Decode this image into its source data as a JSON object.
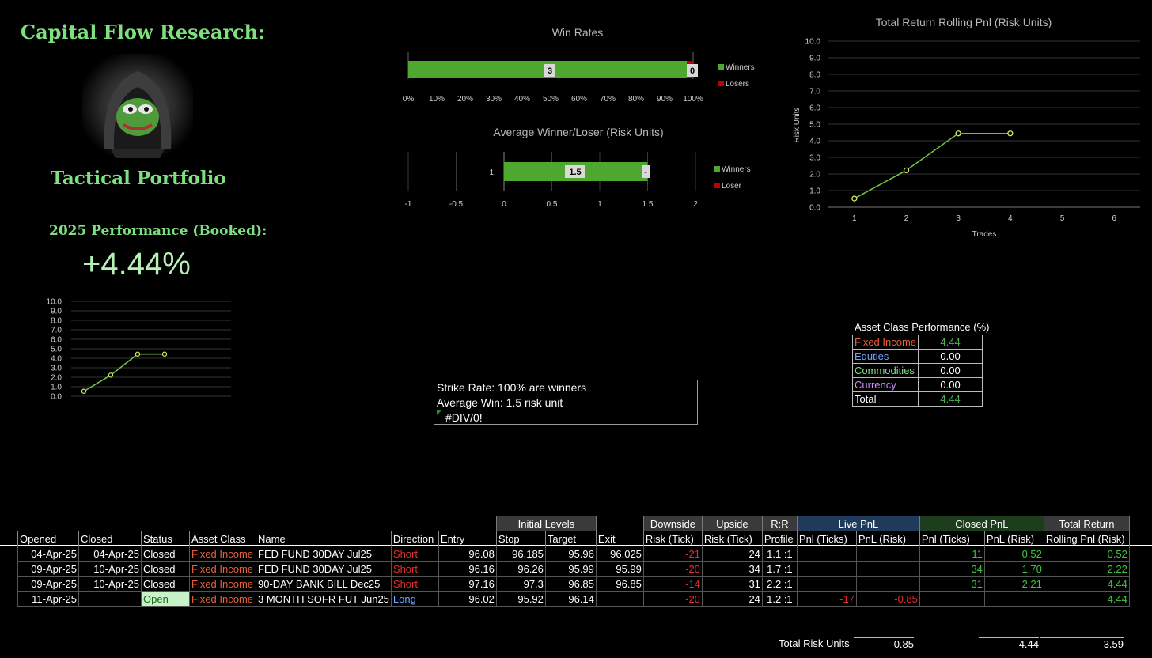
{
  "brand": {
    "title": "Capital Flow Research:",
    "subtitle": "Tactical Portfolio",
    "perf_label": "2025 Performance (Booked):",
    "perf_value": "+4.44%",
    "avatar_icon": "frog-hoodie-avatar"
  },
  "colors": {
    "green_text": "#7fe07f",
    "bar_green": "#4ea72e",
    "red": "#e03030",
    "orange_red": "#e8603c",
    "blue": "#6ea6ff",
    "purple": "#d08bff"
  },
  "win_rates_chart": {
    "type": "bar",
    "title": "Win Rates",
    "orientation": "horizontal-stacked-100",
    "series": [
      {
        "name": "Winners",
        "values": [
          3
        ],
        "color": "#4ea72e"
      },
      {
        "name": "Losers",
        "values": [
          0
        ],
        "color": "#c00000"
      }
    ],
    "data_labels": [
      "3",
      "0"
    ],
    "x_ticks": [
      "0%",
      "10%",
      "20%",
      "30%",
      "40%",
      "50%",
      "60%",
      "70%",
      "80%",
      "90%",
      "100%"
    ],
    "legend": [
      "Winners",
      "Losers"
    ],
    "legend_position": "right"
  },
  "avg_chart": {
    "type": "bar",
    "title": "Average Winner/Loser (Risk Units)",
    "orientation": "horizontal",
    "categories": [
      "1"
    ],
    "series": [
      {
        "name": "Winners",
        "values": [
          1.5
        ],
        "color": "#4ea72e"
      },
      {
        "name": "Loser",
        "values": [
          0
        ],
        "color": "#c00000"
      }
    ],
    "data_labels": [
      "1.5",
      "-"
    ],
    "x_ticks": [
      "-1",
      "-0.5",
      "0",
      "0.5",
      "1",
      "1.5",
      "2"
    ],
    "xlim": [
      -1,
      2
    ],
    "legend": [
      "Winners",
      "Loser"
    ],
    "legend_position": "right"
  },
  "chart_data": [
    {
      "type": "line",
      "title": "Total Return Rolling Pnl (Risk Units)",
      "xlabel": "Trades",
      "ylabel": "Risk Units",
      "x": [
        1,
        2,
        3,
        4
      ],
      "series": [
        {
          "values": [
            0.52,
            2.22,
            4.44,
            4.44
          ]
        }
      ],
      "x_ticks": [
        "1",
        "2",
        "3",
        "4",
        "5",
        "6"
      ],
      "y_ticks": [
        "0.0",
        "1.0",
        "2.0",
        "3.0",
        "4.0",
        "5.0",
        "6.0",
        "7.0",
        "8.0",
        "9.0",
        "10.0"
      ],
      "xlim": [
        0.5,
        6.5
      ],
      "ylim": [
        0,
        10
      ],
      "grid": true
    },
    {
      "type": "line",
      "title": "",
      "x": [
        1,
        2,
        3,
        4
      ],
      "series": [
        {
          "values": [
            0.52,
            2.22,
            4.44,
            4.44
          ]
        }
      ],
      "y_ticks": [
        "0.0",
        "1.0",
        "2.0",
        "3.0",
        "4.0",
        "5.0",
        "6.0",
        "7.0",
        "8.0",
        "9.0",
        "10.0"
      ],
      "ylim": [
        0,
        10
      ],
      "grid": true
    }
  ],
  "notes": {
    "line1": "Strike Rate: 100% are winners",
    "line2": "Average Win: 1.5 risk unit",
    "line3": "#DIV/0!"
  },
  "asset_perf": {
    "title": "Asset Class Performance (%)",
    "rows": [
      {
        "name": "Fixed Income",
        "value": "4.44",
        "name_color": "#e8603c",
        "value_color": "#4caf50"
      },
      {
        "name": "Equties",
        "value": "0.00",
        "name_color": "#6ea6ff",
        "value_color": "#ffffff"
      },
      {
        "name": "Commodities",
        "value": "0.00",
        "name_color": "#7fe07f",
        "value_color": "#ffffff"
      },
      {
        "name": "Currency",
        "value": "0.00",
        "name_color": "#d08bff",
        "value_color": "#ffffff"
      },
      {
        "name": "Total",
        "value": "4.44",
        "name_color": "#ffffff",
        "value_color": "#4caf50"
      }
    ]
  },
  "trades": {
    "groups": {
      "initial": "Initial Levels",
      "downside": "Downside",
      "upside": "Upside",
      "rr": "R:R",
      "live": "Live PnL",
      "closed": "Closed PnL",
      "total": "Total Return"
    },
    "headers": [
      "Opened",
      "Closed",
      "Status",
      "Asset Class",
      "Name",
      "Direction",
      "Entry",
      "Stop",
      "Target",
      "Exit",
      "Risk (Tick)",
      "Risk (Tick)",
      "Profile",
      "Pnl (Ticks)",
      "PnL (Risk)",
      "Pnl (Ticks)",
      "PnL (Risk)",
      "Rolling Pnl (Risk)"
    ],
    "rows": [
      {
        "opened": "04-Apr-25",
        "closed": "04-Apr-25",
        "status": "Closed",
        "asset": "Fixed Income",
        "name": "FED FUND 30DAY    Jul25",
        "direction": "Short",
        "entry": "96.08",
        "stop": "96.185",
        "target": "95.96",
        "exit": "96.025",
        "down": "-21",
        "up": "24",
        "rr": "1.1 :1",
        "live_ticks": "",
        "live_risk": "",
        "closed_ticks": "11",
        "closed_risk": "0.52",
        "rolling": "0.52"
      },
      {
        "opened": "09-Apr-25",
        "closed": "10-Apr-25",
        "status": "Closed",
        "asset": "Fixed Income",
        "name": "FED FUND 30DAY    Jul25",
        "direction": "Short",
        "entry": "96.16",
        "stop": "96.26",
        "target": "95.99",
        "exit": "95.99",
        "down": "-20",
        "up": "34",
        "rr": "1.7 :1",
        "live_ticks": "",
        "live_risk": "",
        "closed_ticks": "34",
        "closed_risk": "1.70",
        "rolling": "2.22"
      },
      {
        "opened": "09-Apr-25",
        "closed": "10-Apr-25",
        "status": "Closed",
        "asset": "Fixed Income",
        "name": "90-DAY BANK BILL   Dec25",
        "direction": "Short",
        "entry": "97.16",
        "stop": "97.3",
        "target": "96.85",
        "exit": "96.85",
        "down": "-14",
        "up": "31",
        "rr": "2.2 :1",
        "live_ticks": "",
        "live_risk": "",
        "closed_ticks": "31",
        "closed_risk": "2.21",
        "rolling": "4.44"
      },
      {
        "opened": "11-Apr-25",
        "closed": "",
        "status": "Open",
        "asset": "Fixed Income",
        "name": "3 MONTH SOFR FUT   Jun25",
        "direction": "Long",
        "entry": "96.02",
        "stop": "95.92",
        "target": "96.14",
        "exit": "",
        "down": "-20",
        "up": "24",
        "rr": "1.2 :1",
        "live_ticks": "-17",
        "live_risk": "-0.85",
        "closed_ticks": "",
        "closed_risk": "",
        "rolling": "4.44"
      }
    ],
    "totals": {
      "label": "Total Risk Units",
      "live": "-0.85",
      "closed": "4.44",
      "total": "3.59"
    }
  }
}
